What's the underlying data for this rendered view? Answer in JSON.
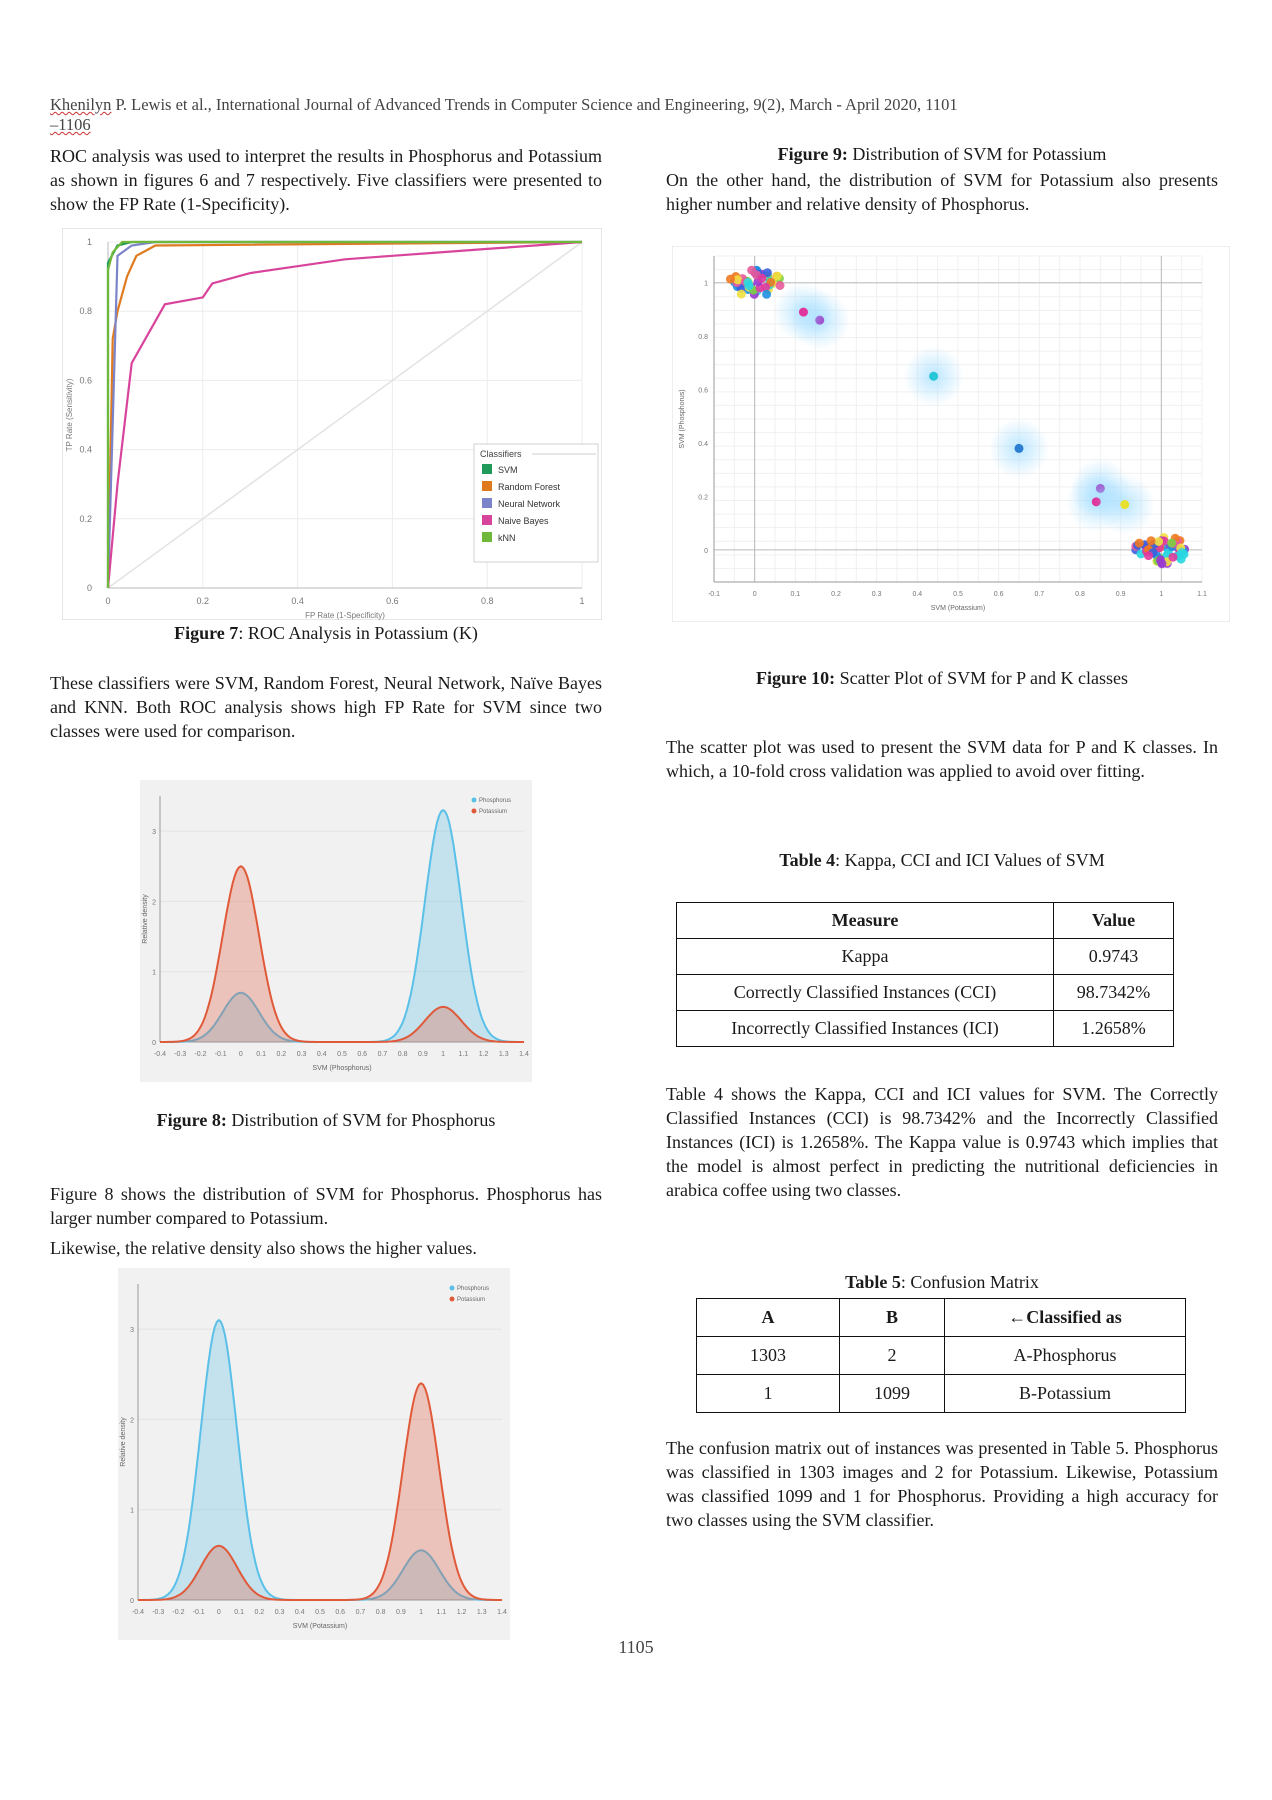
{
  "header": {
    "authors": "Khenilyn",
    "text": " P. Lewis et al., International Journal of Advanced Trends in Computer Science and Engineering, 9(2), March - April 2020, 1101",
    "pages": "–1106"
  },
  "left": {
    "p1": "ROC analysis was used to interpret the results in Phosphorus and Potassium as shown in figures 6 and 7 respectively. Five classifiers were presented to show the FP Rate (1-Specificity).",
    "fig7_label": "Figure 7",
    "fig7_text": ": ROC Analysis in Potassium (K)",
    "p2": "These classifiers were SVM, Random Forest, Neural Network, Naïve Bayes and KNN. Both ROC analysis shows high FP Rate for SVM since two classes were used for comparison.",
    "fig8_label": "Figure 8:",
    "fig8_text": " Distribution of SVM for Phosphorus",
    "p3a": "Figure 8 shows the distribution of SVM for Phosphorus. Phosphorus has larger number compared to Potassium.",
    "p3b": "Likewise, the relative density also shows the higher values."
  },
  "right": {
    "fig9_label": "Figure 9:",
    "fig9_text": " Distribution of SVM for Potassium",
    "p1": "On the other hand, the distribution of SVM for Potassium also presents higher number and relative density of Phosphorus.",
    "fig10_label": "Figure 10:",
    "fig10_text": " Scatter Plot of SVM for P and K classes",
    "p2": "The scatter plot was used to present the SVM data for P and K classes. In which, a 10-fold cross validation was applied to avoid over fitting.",
    "table4_label": "Table 4",
    "table4_text": ": Kappa, CCI and ICI Values of SVM",
    "table4": {
      "headers": [
        "Measure",
        "Value"
      ],
      "rows": [
        [
          "Kappa",
          "0.9743"
        ],
        [
          "Correctly Classified Instances (CCI)",
          "98.7342%"
        ],
        [
          "Incorrectly Classified Instances (ICI)",
          "1.2658%"
        ]
      ]
    },
    "p3": "Table 4 shows the Kappa, CCI and ICI values for SVM. The Correctly Classified Instances (CCI) is 98.7342% and the Incorrectly Classified Instances (ICI) is 1.2658%. The Kappa value is 0.9743 which implies that the model is almost perfect in predicting the nutritional deficiencies in arabica coffee using two classes.",
    "table5_label": "Table 5",
    "table5_text": ": Confusion Matrix",
    "table5": {
      "headers": [
        "A",
        "B",
        "←Classified as"
      ],
      "rows": [
        [
          "1303",
          "2",
          "A-Phosphorus"
        ],
        [
          "1",
          "1099",
          "B-Potassium"
        ]
      ]
    },
    "p4": "The confusion matrix out of instances was presented in Table 5. Phosphorus was classified in 1303 images and 2 for Potassium. Likewise, Potassium was classified 1099 and 1 for Phosphorus. Providing a high accuracy for two classes using the SVM classifier."
  },
  "page_number": "1105",
  "chart_data": [
    {
      "type": "line",
      "xlabel": "FP Rate (1-Specificity)",
      "ylabel": "TP Rate (Sensitivity)",
      "xlim": [
        0,
        1
      ],
      "ylim": [
        0,
        1
      ],
      "x_ticks": [
        "0",
        "0.2",
        "0.4",
        "0.6",
        "0.8",
        "1"
      ],
      "y_ticks": [
        "0",
        "0.2",
        "0.4",
        "0.6",
        "0.8",
        "1"
      ],
      "legend_title": "Classifiers",
      "legend": "right",
      "series": [
        {
          "name": "SVM",
          "color": "#1f9a5a",
          "x": [
            0,
            0,
            0.02,
            0.05,
            1
          ],
          "y": [
            0,
            0.94,
            0.99,
            1,
            1
          ]
        },
        {
          "name": "Random Forest",
          "color": "#e07a1f",
          "x": [
            0,
            0.01,
            0.02,
            0.04,
            0.06,
            0.1,
            1
          ],
          "y": [
            0,
            0.72,
            0.8,
            0.9,
            0.96,
            0.99,
            1
          ]
        },
        {
          "name": "Neural Network",
          "color": "#7b84c9",
          "x": [
            0,
            0.02,
            0.05,
            0.1,
            1
          ],
          "y": [
            0,
            0.96,
            0.99,
            1,
            1
          ]
        },
        {
          "name": "Naive Bayes",
          "color": "#d8449c",
          "x": [
            0,
            0.02,
            0.05,
            0.12,
            0.2,
            0.22,
            0.3,
            0.4,
            0.5,
            0.6,
            0.7,
            0.8,
            0.9,
            1
          ],
          "y": [
            0,
            0.3,
            0.65,
            0.82,
            0.84,
            0.88,
            0.91,
            0.93,
            0.95,
            0.96,
            0.97,
            0.98,
            0.99,
            1
          ]
        },
        {
          "name": "kNN",
          "color": "#6fb83a",
          "x": [
            0,
            0,
            0.01,
            0.03,
            1
          ],
          "y": [
            0,
            0.92,
            0.97,
            1,
            1
          ]
        }
      ]
    },
    {
      "type": "area",
      "xlabel": "SVM (Phosphorus)",
      "ylabel": "Relative density",
      "legend": "top-right",
      "x_ticks": [
        "-0.4",
        "-0.3",
        "-0.2",
        "-0.1",
        "0",
        "0.1",
        "0.2",
        "0.3",
        "0.4",
        "0.5",
        "0.6",
        "0.7",
        "0.8",
        "0.9",
        "1",
        "1.1",
        "1.2",
        "1.3",
        "1.4"
      ],
      "y_ticks": [
        "0",
        "1",
        "2",
        "3"
      ],
      "series": [
        {
          "name": "Phosphorus",
          "color": "#5bc0e8",
          "peaks": [
            {
              "x": 0,
              "height": 0.7
            },
            {
              "x": 1,
              "height": 3.3
            }
          ]
        },
        {
          "name": "Potassium",
          "color": "#e05a3a",
          "peaks": [
            {
              "x": 0,
              "height": 2.5
            },
            {
              "x": 1,
              "height": 0.5
            }
          ]
        }
      ]
    },
    {
      "type": "area",
      "xlabel": "SVM (Potassium)",
      "ylabel": "Relative density",
      "legend": "top-right",
      "x_ticks": [
        "-0.4",
        "-0.3",
        "-0.2",
        "-0.1",
        "0",
        "0.1",
        "0.2",
        "0.3",
        "0.4",
        "0.5",
        "0.6",
        "0.7",
        "0.8",
        "0.9",
        "1",
        "1.1",
        "1.2",
        "1.3",
        "1.4"
      ],
      "y_ticks": [
        "0",
        "1",
        "2",
        "3"
      ],
      "series": [
        {
          "name": "Phosphorus",
          "color": "#5bc0e8",
          "peaks": [
            {
              "x": 0,
              "height": 3.1
            },
            {
              "x": 1,
              "height": 0.55
            }
          ]
        },
        {
          "name": "Potassium",
          "color": "#e05a3a",
          "peaks": [
            {
              "x": 0,
              "height": 0.6
            },
            {
              "x": 1,
              "height": 2.4
            }
          ]
        }
      ]
    },
    {
      "type": "scatter",
      "xlabel": "SVM (Potassium)",
      "ylabel": "SVM (Phosphorus)",
      "x_ticks": [
        "-0.1",
        "0",
        "0.1",
        "0.2",
        "0.3",
        "0.4",
        "0.5",
        "0.6",
        "0.7",
        "0.8",
        "0.9",
        "1",
        "1.1"
      ],
      "y_ticks": [
        "0",
        "0.2",
        "0.4",
        "0.6",
        "0.8",
        "1"
      ],
      "clusters": [
        {
          "x": 0,
          "y": 1,
          "spread": 0.06,
          "n": 45
        },
        {
          "x": 1,
          "y": 0,
          "spread": 0.06,
          "n": 55
        }
      ],
      "outliers": [
        {
          "x": 0.44,
          "y": 0.65,
          "color": "#25c6d8"
        },
        {
          "x": 0.65,
          "y": 0.38,
          "color": "#2a7fd0"
        },
        {
          "x": 0.16,
          "y": 0.86,
          "color": "#a030c0"
        },
        {
          "x": 0.12,
          "y": 0.89,
          "color": "#e0359c"
        },
        {
          "x": 0.85,
          "y": 0.23,
          "color": "#a030c0"
        },
        {
          "x": 0.84,
          "y": 0.18,
          "color": "#e0359c"
        },
        {
          "x": 0.91,
          "y": 0.17,
          "color": "#e8e030"
        }
      ]
    }
  ]
}
